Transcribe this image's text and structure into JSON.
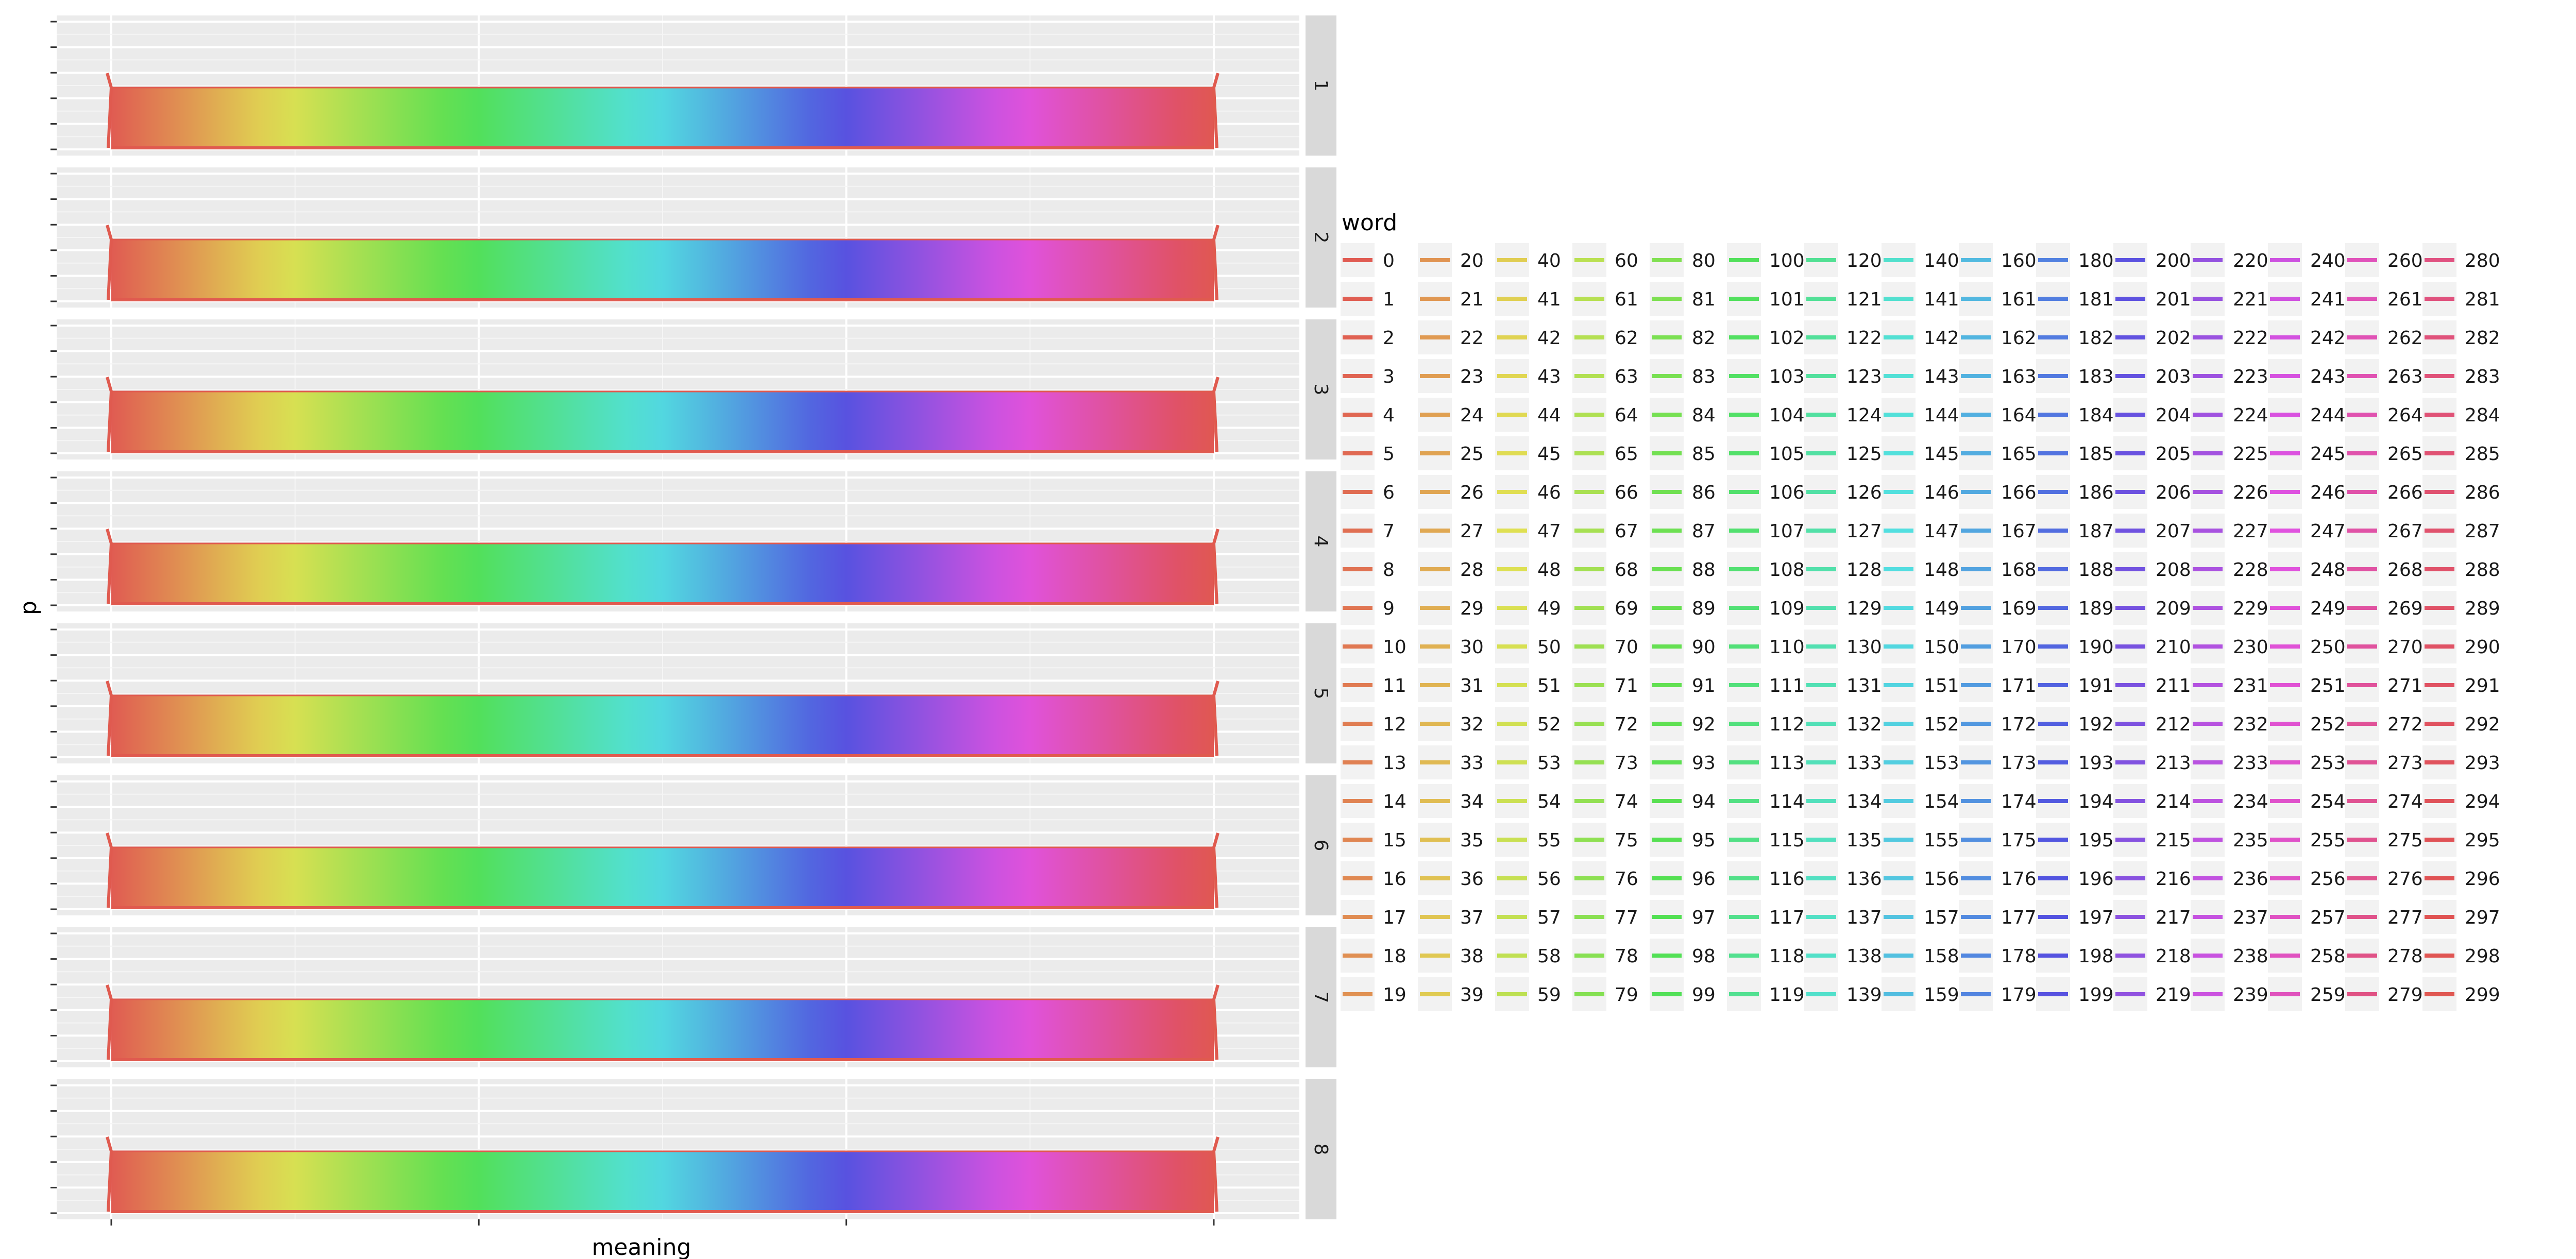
{
  "chart_data": {
    "type": "line",
    "xlabel": "meaning",
    "ylabel": "p",
    "facet_labels": [
      "1",
      "2",
      "3",
      "4",
      "5",
      "6",
      "7",
      "8"
    ],
    "x_range": [
      0,
      299
    ],
    "y_approx_level": 0.6,
    "grid": true,
    "x_tick_labels_visible": false,
    "y_tick_labels_visible": false,
    "legend": {
      "title": "word",
      "placement": "right",
      "rows": 20,
      "columns": 15,
      "entries": [
        "0",
        "1",
        "2",
        "3",
        "4",
        "5",
        "6",
        "7",
        "8",
        "9",
        "10",
        "11",
        "12",
        "13",
        "14",
        "15",
        "16",
        "17",
        "18",
        "19",
        "20",
        "21",
        "22",
        "23",
        "24",
        "25",
        "26",
        "27",
        "28",
        "29",
        "30",
        "31",
        "32",
        "33",
        "34",
        "35",
        "36",
        "37",
        "38",
        "39",
        "40",
        "41",
        "42",
        "43",
        "44",
        "45",
        "46",
        "47",
        "48",
        "49",
        "50",
        "51",
        "52",
        "53",
        "54",
        "55",
        "56",
        "57",
        "58",
        "59",
        "60",
        "61",
        "62",
        "63",
        "64",
        "65",
        "66",
        "67",
        "68",
        "69",
        "70",
        "71",
        "72",
        "73",
        "74",
        "75",
        "76",
        "77",
        "78",
        "79",
        "80",
        "81",
        "82",
        "83",
        "84",
        "85",
        "86",
        "87",
        "88",
        "89",
        "90",
        "91",
        "92",
        "93",
        "94",
        "95",
        "96",
        "97",
        "98",
        "99",
        "100",
        "101",
        "102",
        "103",
        "104",
        "105",
        "106",
        "107",
        "108",
        "109",
        "110",
        "111",
        "112",
        "113",
        "114",
        "115",
        "116",
        "117",
        "118",
        "119",
        "120",
        "121",
        "122",
        "123",
        "124",
        "125",
        "126",
        "127",
        "128",
        "129",
        "130",
        "131",
        "132",
        "133",
        "134",
        "135",
        "136",
        "137",
        "138",
        "139",
        "140",
        "141",
        "142",
        "143",
        "144",
        "145",
        "146",
        "147",
        "148",
        "149",
        "150",
        "151",
        "152",
        "153",
        "154",
        "155",
        "156",
        "157",
        "158",
        "159",
        "160",
        "161",
        "162",
        "163",
        "164",
        "165",
        "166",
        "167",
        "168",
        "169",
        "170",
        "171",
        "172",
        "173",
        "174",
        "175",
        "176",
        "177",
        "178",
        "179",
        "180",
        "181",
        "182",
        "183",
        "184",
        "185",
        "186",
        "187",
        "188",
        "189",
        "190",
        "191",
        "192",
        "193",
        "194",
        "195",
        "196",
        "197",
        "198",
        "199",
        "200",
        "201",
        "202",
        "203",
        "204",
        "205",
        "206",
        "207",
        "208",
        "209",
        "210",
        "211",
        "212",
        "213",
        "214",
        "215",
        "216",
        "217",
        "218",
        "219",
        "220",
        "221",
        "222",
        "223",
        "224",
        "225",
        "226",
        "227",
        "228",
        "229",
        "230",
        "231",
        "232",
        "233",
        "234",
        "235",
        "236",
        "237",
        "238",
        "239",
        "240",
        "241",
        "242",
        "243",
        "244",
        "245",
        "246",
        "247",
        "248",
        "249",
        "250",
        "251",
        "252",
        "253",
        "254",
        "255",
        "256",
        "257",
        "258",
        "259",
        "260",
        "261",
        "262",
        "263",
        "264",
        "265",
        "266",
        "267",
        "268",
        "269",
        "270",
        "271",
        "272",
        "273",
        "274",
        "275",
        "276",
        "277",
        "278",
        "279",
        "280",
        "281",
        "282",
        "283",
        "284",
        "285",
        "286",
        "287",
        "288",
        "289",
        "290",
        "291",
        "292",
        "293",
        "294",
        "295",
        "296",
        "297",
        "298",
        "299"
      ]
    },
    "color_scale": "hue (ggplot default), word 0 = #E05A4F → word 299 = #E05A4F"
  }
}
